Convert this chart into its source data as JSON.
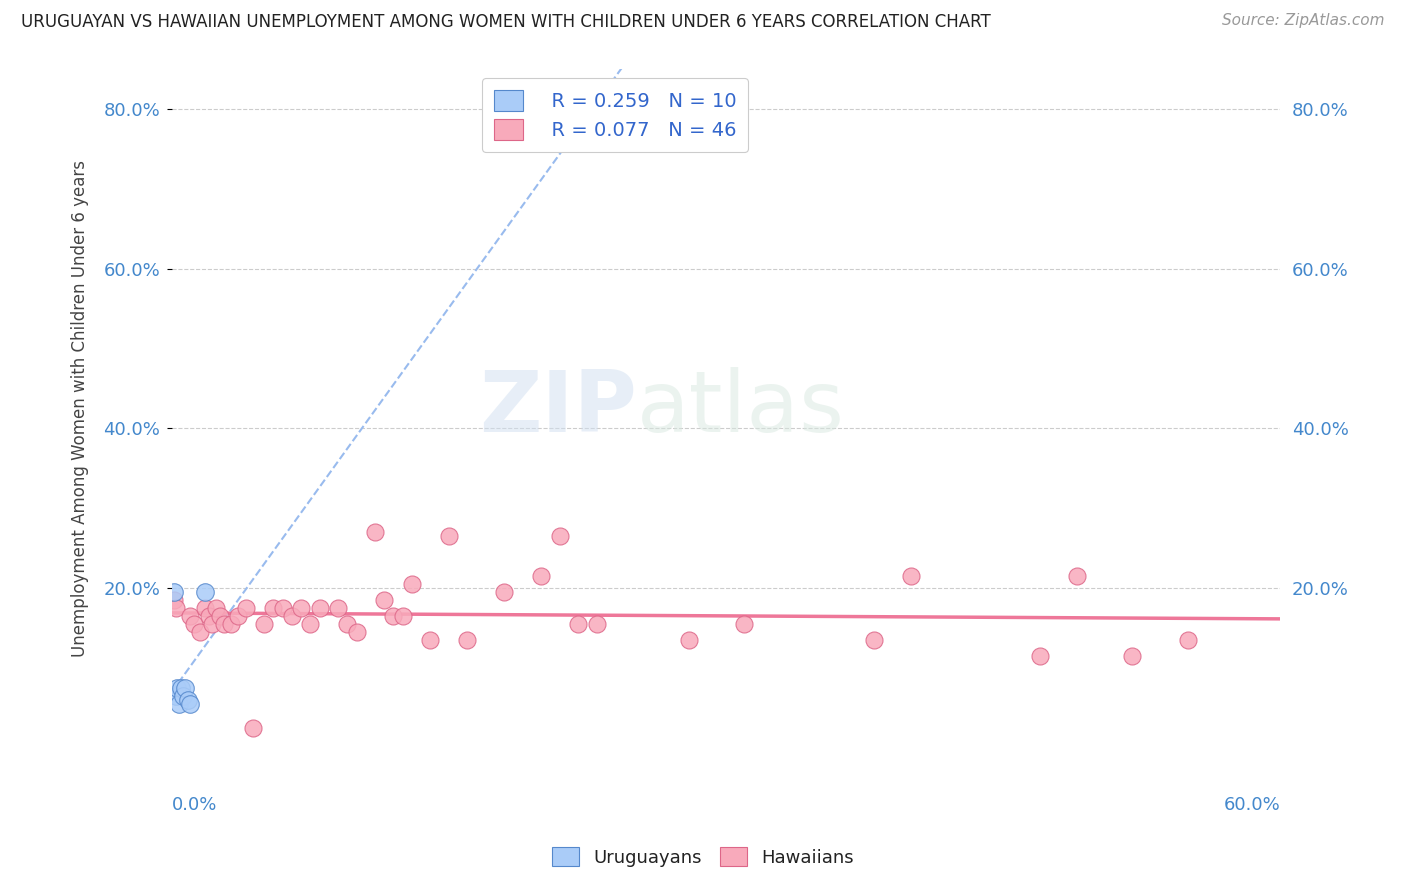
{
  "title": "URUGUAYAN VS HAWAIIAN UNEMPLOYMENT AMONG WOMEN WITH CHILDREN UNDER 6 YEARS CORRELATION CHART",
  "source": "Source: ZipAtlas.com",
  "ylabel": "Unemployment Among Women with Children Under 6 years",
  "watermark_zip": "ZIP",
  "watermark_atlas": "atlas",
  "legend_uruguayan_R": "R = 0.259",
  "legend_uruguayan_N": "N = 10",
  "legend_hawaiian_R": "R = 0.077",
  "legend_hawaiian_N": "N = 46",
  "xlim": [
    0.0,
    0.6
  ],
  "ylim": [
    0.0,
    0.85
  ],
  "yticks": [
    0.2,
    0.4,
    0.6,
    0.8
  ],
  "uruguayan_color": "#aaccf8",
  "uruguayan_edge": "#5588cc",
  "hawaiian_color": "#f8aabb",
  "hawaiian_edge": "#dd6688",
  "trend_uruguayan_color": "#99bbee",
  "trend_hawaiian_color": "#ee7799",
  "grid_color": "#cccccc",
  "uruguayan_x": [
    0.001,
    0.002,
    0.003,
    0.004,
    0.005,
    0.006,
    0.007,
    0.009,
    0.01,
    0.018
  ],
  "uruguayan_y": [
    0.195,
    0.065,
    0.075,
    0.055,
    0.075,
    0.065,
    0.075,
    0.06,
    0.055,
    0.195
  ],
  "hawaiian_x": [
    0.001,
    0.002,
    0.01,
    0.012,
    0.015,
    0.018,
    0.02,
    0.022,
    0.024,
    0.026,
    0.028,
    0.032,
    0.036,
    0.04,
    0.044,
    0.05,
    0.055,
    0.06,
    0.065,
    0.07,
    0.075,
    0.08,
    0.09,
    0.095,
    0.1,
    0.11,
    0.115,
    0.12,
    0.125,
    0.13,
    0.14,
    0.15,
    0.16,
    0.18,
    0.2,
    0.21,
    0.22,
    0.23,
    0.28,
    0.31,
    0.38,
    0.4,
    0.47,
    0.49,
    0.52,
    0.55
  ],
  "hawaiian_y": [
    0.185,
    0.175,
    0.165,
    0.155,
    0.145,
    0.175,
    0.165,
    0.155,
    0.175,
    0.165,
    0.155,
    0.155,
    0.165,
    0.175,
    0.025,
    0.155,
    0.175,
    0.175,
    0.165,
    0.175,
    0.155,
    0.175,
    0.175,
    0.155,
    0.145,
    0.27,
    0.185,
    0.165,
    0.165,
    0.205,
    0.135,
    0.265,
    0.135,
    0.195,
    0.215,
    0.265,
    0.155,
    0.155,
    0.135,
    0.155,
    0.135,
    0.215,
    0.115,
    0.215,
    0.115,
    0.135
  ]
}
